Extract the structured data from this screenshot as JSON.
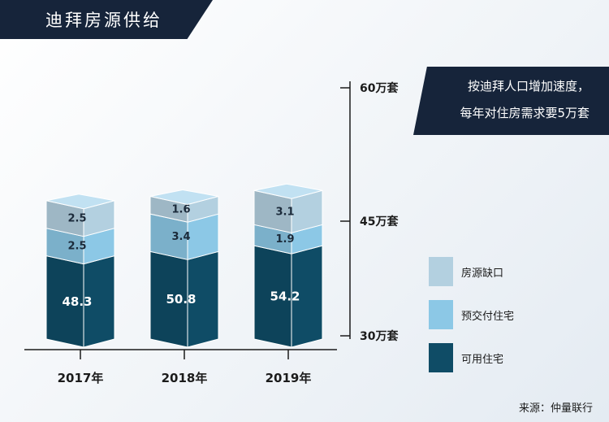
{
  "header": {
    "title": "迪拜房源供给"
  },
  "callout": {
    "line1": "按迪拜人口增加速度，",
    "line2": "每年对住房需求要5万套"
  },
  "source": "来源：仲量联行",
  "colors": {
    "usable": "#0f4c66",
    "presale": "#8cc8e6",
    "gap": "#b3d0e0",
    "axis": "#1b1b1b"
  },
  "chart_data": {
    "type": "bar",
    "stacked": true,
    "categories": [
      "2017年",
      "2018年",
      "2019年"
    ],
    "series": [
      {
        "name": "可用住宅",
        "values": [
          48.3,
          50.8,
          54.2
        ],
        "labels": [
          "48.3",
          "50.8",
          "54.2"
        ],
        "color": "#0f4c66"
      },
      {
        "name": "预交付住宅",
        "values": [
          2.5,
          3.4,
          1.9
        ],
        "labels": [
          "2.5",
          "3.4",
          "1.9"
        ],
        "color": "#8cc8e6"
      },
      {
        "name": "房源缺口",
        "values": [
          2.5,
          1.6,
          3.1
        ],
        "labels": [
          "2.5",
          "1.6",
          "3.1"
        ],
        "color": "#b3d0e0"
      }
    ],
    "y_ticks": [
      {
        "value": 60,
        "label": "60万套"
      },
      {
        "value": 45,
        "label": "45万套"
      },
      {
        "value": 30,
        "label": "30万套"
      }
    ],
    "legend": [
      "房源缺口",
      "预交付住宅",
      "可用住宅"
    ],
    "legend_position": "right"
  }
}
